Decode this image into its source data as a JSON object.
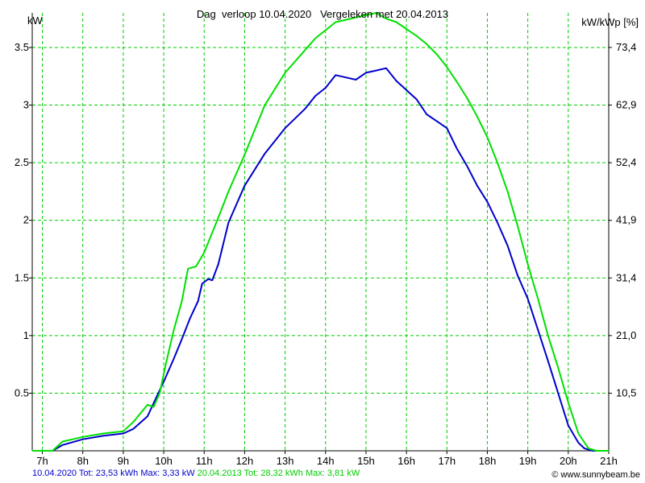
{
  "header": {
    "title": "Dag  verloop 10.04.2020   Vergeleken met 20.04.2013",
    "unit_left": "kW",
    "unit_right": "kW/kWp [%]"
  },
  "footer": {
    "series1_text": "10.04.2020 Tot: 23,53 kWh Max: 3,33 kW",
    "series2_text": "20.04.2013 Tot: 28,32 kWh Max: 3,81 kW",
    "credit": "© www.sunnybeam.be"
  },
  "chart_data": {
    "type": "line",
    "title": "Dag  verloop 10.04.2020   Vergeleken met 20.04.2013",
    "xlabel": "",
    "ylabel": "kW",
    "ylabel_right": "kW/kWp [%]",
    "xlim": [
      6.75,
      21.0
    ],
    "ylim": [
      0,
      3.8
    ],
    "x_ticks": [
      7,
      8,
      9,
      10,
      11,
      12,
      13,
      14,
      15,
      16,
      17,
      18,
      19,
      20,
      21
    ],
    "x_tick_labels": [
      "7h",
      "8h",
      "9h",
      "10h",
      "11h",
      "12h",
      "13h",
      "14h",
      "15h",
      "16h",
      "17h",
      "18h",
      "19h",
      "20h",
      "21h"
    ],
    "y_ticks": [
      0.5,
      1,
      1.5,
      2,
      2.5,
      3,
      3.5
    ],
    "y_tick_labels": [
      "0.5",
      "1",
      "1.5",
      "2",
      "2.5",
      "3",
      "3.5"
    ],
    "y2_tick_labels": [
      "10,5",
      "21,0",
      "31,4",
      "41,9",
      "52,4",
      "62,9",
      "73,4"
    ],
    "grid": true,
    "grid_color": "#00cc00",
    "series": [
      {
        "name": "10.04.2020",
        "color": "#0000cc",
        "x": [
          6.75,
          7.25,
          7.5,
          8.0,
          8.5,
          9.0,
          9.25,
          9.6,
          9.8,
          10.0,
          10.25,
          10.45,
          10.65,
          10.85,
          10.95,
          11.1,
          11.2,
          11.35,
          11.6,
          12.0,
          12.5,
          13.0,
          13.5,
          13.75,
          14.0,
          14.25,
          14.5,
          14.75,
          15.0,
          15.25,
          15.5,
          15.75,
          16.0,
          16.25,
          16.5,
          16.75,
          17.0,
          17.25,
          17.5,
          17.75,
          18.0,
          18.25,
          18.5,
          18.75,
          19.0,
          19.25,
          19.5,
          19.75,
          20.0,
          20.25,
          20.4,
          20.6,
          21.0
        ],
        "y": [
          0.0,
          0.0,
          0.05,
          0.1,
          0.13,
          0.15,
          0.19,
          0.3,
          0.45,
          0.6,
          0.8,
          0.97,
          1.15,
          1.3,
          1.45,
          1.49,
          1.48,
          1.62,
          1.98,
          2.3,
          2.58,
          2.8,
          2.97,
          3.08,
          3.15,
          3.26,
          3.24,
          3.22,
          3.28,
          3.3,
          3.32,
          3.21,
          3.13,
          3.05,
          2.92,
          2.86,
          2.8,
          2.62,
          2.47,
          2.3,
          2.16,
          1.98,
          1.78,
          1.52,
          1.32,
          1.05,
          0.78,
          0.5,
          0.22,
          0.07,
          0.02,
          0.0,
          0.0
        ]
      },
      {
        "name": "20.04.2013",
        "color": "#00e000",
        "x": [
          6.75,
          7.25,
          7.5,
          8.0,
          8.5,
          9.0,
          9.25,
          9.6,
          9.75,
          9.9,
          10.05,
          10.25,
          10.45,
          10.6,
          10.8,
          11.0,
          11.3,
          11.6,
          12.0,
          12.5,
          13.0,
          13.5,
          13.75,
          14.0,
          14.25,
          14.5,
          14.75,
          15.0,
          15.25,
          15.5,
          15.75,
          16.0,
          16.25,
          16.5,
          16.75,
          17.0,
          17.25,
          17.5,
          17.75,
          18.0,
          18.25,
          18.5,
          18.75,
          19.0,
          19.25,
          19.5,
          19.75,
          20.0,
          20.25,
          20.5,
          20.7,
          21.0
        ],
        "y": [
          0.0,
          0.0,
          0.08,
          0.12,
          0.15,
          0.17,
          0.25,
          0.4,
          0.38,
          0.5,
          0.75,
          1.05,
          1.3,
          1.58,
          1.6,
          1.72,
          1.98,
          2.25,
          2.57,
          3.0,
          3.28,
          3.48,
          3.58,
          3.65,
          3.72,
          3.74,
          3.76,
          3.78,
          3.8,
          3.75,
          3.72,
          3.66,
          3.6,
          3.53,
          3.44,
          3.33,
          3.2,
          3.06,
          2.9,
          2.72,
          2.5,
          2.25,
          1.95,
          1.62,
          1.32,
          1.0,
          0.72,
          0.42,
          0.15,
          0.02,
          0.0,
          0.0
        ]
      }
    ]
  }
}
